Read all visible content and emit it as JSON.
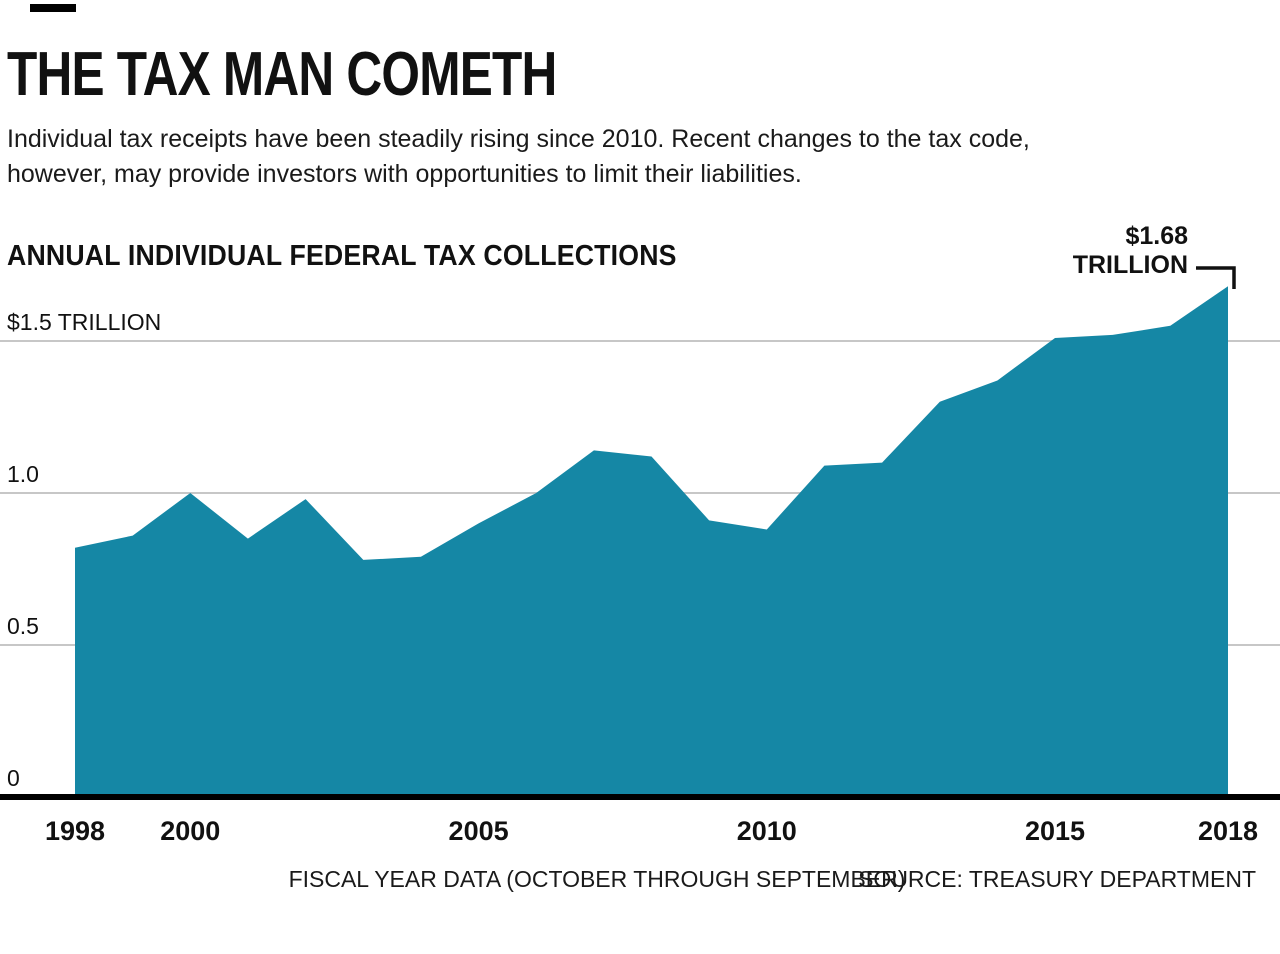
{
  "header": {
    "title": "THE TAX MAN COMETH",
    "subtitle_lines": [
      "Individual tax receipts have been steadily rising since 2010. Recent changes to the tax code,",
      "however, may provide investors with opportunities to limit their liabilities."
    ]
  },
  "chart": {
    "heading": "ANNUAL INDIVIDUAL FEDERAL TAX COLLECTIONS",
    "annotation": {
      "value_label": "$1.68",
      "unit_label": "TRILLION"
    },
    "footer": {
      "note": "FISCAL YEAR DATA (OCTOBER THROUGH SEPTEMBER)",
      "source": "SOURCE: TREASURY DEPARTMENT"
    }
  },
  "chart_data": {
    "type": "area",
    "title": "ANNUAL INDIVIDUAL FEDERAL TAX COLLECTIONS",
    "unit": "trillions of U.S. dollars",
    "x": [
      1998,
      1999,
      2000,
      2001,
      2002,
      2003,
      2004,
      2005,
      2006,
      2007,
      2008,
      2009,
      2010,
      2011,
      2012,
      2013,
      2014,
      2015,
      2016,
      2017,
      2018
    ],
    "values": [
      0.82,
      0.86,
      1.0,
      0.85,
      0.98,
      0.78,
      0.79,
      0.9,
      1.0,
      1.14,
      1.12,
      0.91,
      0.88,
      1.09,
      1.1,
      1.3,
      1.37,
      1.51,
      1.52,
      1.55,
      1.68
    ],
    "ylim": [
      0,
      1.75
    ],
    "yticks": [
      {
        "value": 0,
        "label": "0"
      },
      {
        "value": 0.5,
        "label": "0.5"
      },
      {
        "value": 1.0,
        "label": "1.0"
      },
      {
        "value": 1.5,
        "label": "$1.5 TRILLION"
      }
    ],
    "xticks": [
      1998,
      2000,
      2005,
      2010,
      2015,
      2018
    ],
    "annotation": {
      "x": 2018,
      "value": 1.68,
      "label": "$1.68 TRILLION"
    },
    "grid": true,
    "legend": false,
    "fill_color": "#1587a5",
    "gridline_color": "#c7c7c7",
    "axis_color": "#000000"
  }
}
